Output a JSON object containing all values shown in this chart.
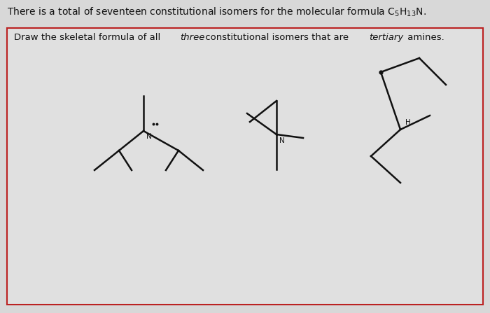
{
  "bg_color": "#d8d8d8",
  "box_bg": "#e0e0e0",
  "line_color": "#111111",
  "text_color": "#111111",
  "border_color": "#bb2222",
  "header": "There is a total of seventeen constitutional isomers for the molecular formula $\\mathregular{C_5H_{13}N}$.",
  "instr_p1": "Draw the skeletal formula of all ",
  "instr_i1": "three",
  "instr_p2": " constitutional isomers that are ",
  "instr_i2": "tertiary",
  "instr_p3": " amines."
}
